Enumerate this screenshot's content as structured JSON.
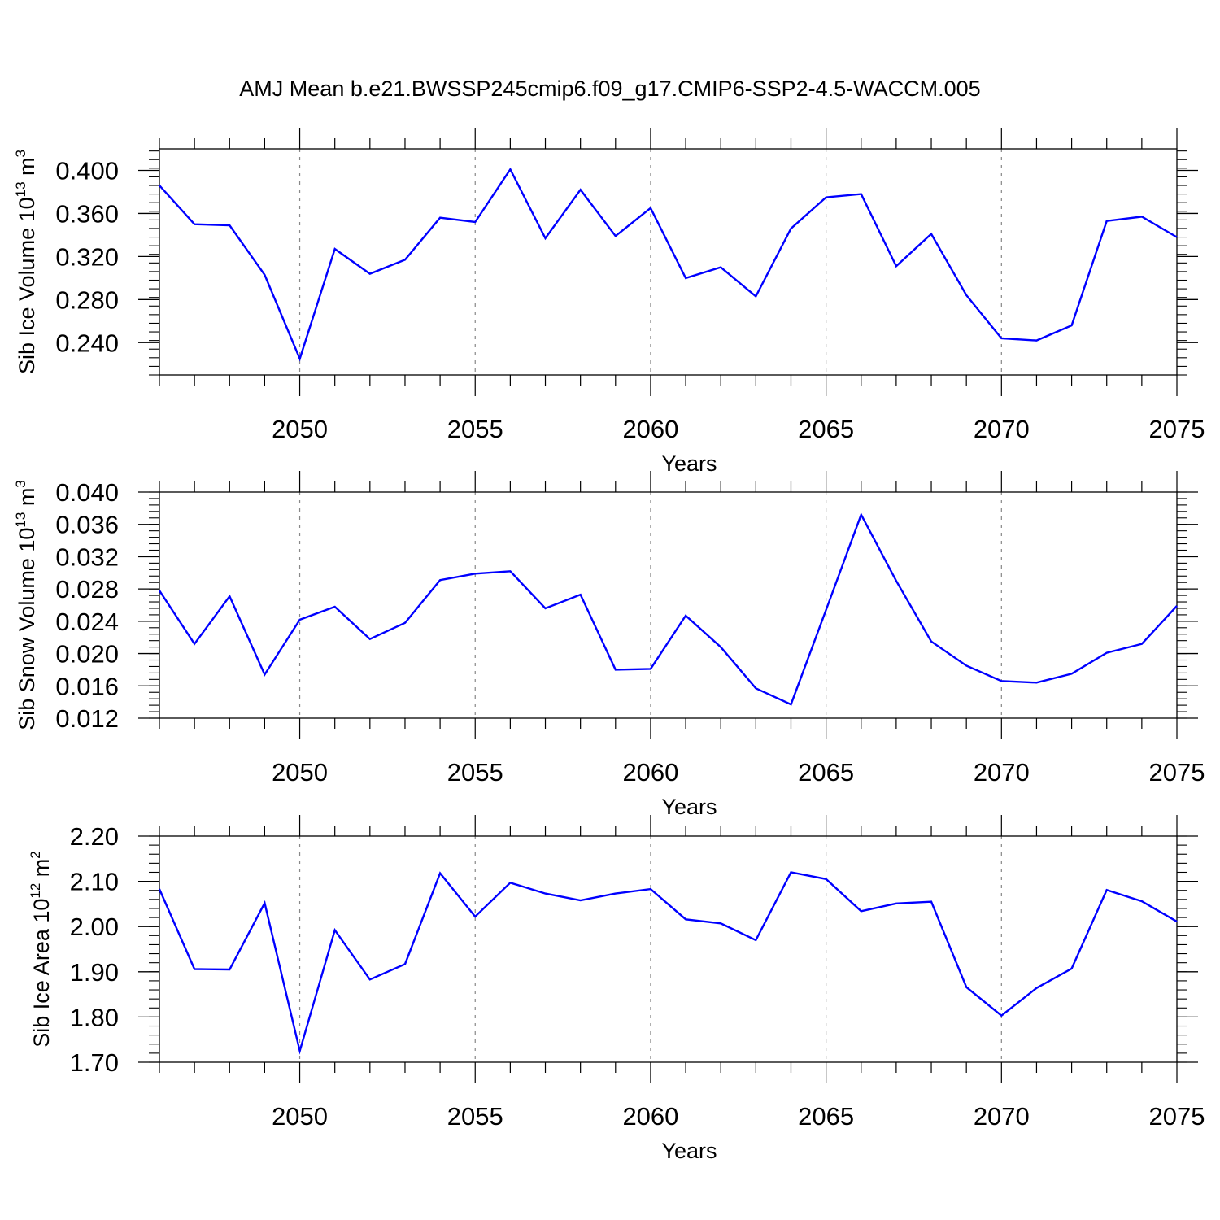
{
  "title": "AMJ Mean b.e21.BWSSP245cmip6.f09_g17.CMIP6-SSP2-4.5-WACCM.005",
  "line_color": "#0000ff",
  "chart_data": [
    {
      "type": "line",
      "ylabel": "Sib Ice Volume 10",
      "ylabel_exp": "13",
      "ylabel_unit": " m",
      "ylabel_unit_exp": "3",
      "xlabel": "Years",
      "xlim": [
        2046,
        2075
      ],
      "ylim": [
        0.21,
        0.42
      ],
      "yticks": [
        0.24,
        0.28,
        0.32,
        0.36,
        0.4
      ],
      "ytick_labels": [
        "0.240",
        "0.280",
        "0.320",
        "0.360",
        "0.400"
      ],
      "xticks": [
        2050,
        2055,
        2060,
        2065,
        2070,
        2075
      ],
      "xtick_labels": [
        "2050",
        "2055",
        "2060",
        "2065",
        "2070",
        "2075"
      ],
      "x": [
        2046,
        2047,
        2048,
        2049,
        2050,
        2051,
        2052,
        2053,
        2054,
        2055,
        2056,
        2057,
        2058,
        2059,
        2060,
        2061,
        2062,
        2063,
        2064,
        2065,
        2066,
        2067,
        2068,
        2069,
        2070,
        2071,
        2072,
        2073,
        2074,
        2075
      ],
      "values": [
        0.386,
        0.35,
        0.349,
        0.303,
        0.225,
        0.327,
        0.304,
        0.317,
        0.356,
        0.352,
        0.401,
        0.337,
        0.382,
        0.339,
        0.365,
        0.3,
        0.31,
        0.283,
        0.346,
        0.375,
        0.378,
        0.311,
        0.341,
        0.284,
        0.244,
        0.242,
        0.256,
        0.353,
        0.357,
        0.338
      ]
    },
    {
      "type": "line",
      "ylabel": "Sib Snow Volume 10",
      "ylabel_exp": "13",
      "ylabel_unit": " m",
      "ylabel_unit_exp": "3",
      "xlabel": "Years",
      "xlim": [
        2046,
        2075
      ],
      "ylim": [
        0.012,
        0.04
      ],
      "yticks": [
        0.012,
        0.016,
        0.02,
        0.024,
        0.028,
        0.032,
        0.036,
        0.04
      ],
      "ytick_labels": [
        "0.012",
        "0.016",
        "0.020",
        "0.024",
        "0.028",
        "0.032",
        "0.036",
        "0.040"
      ],
      "xticks": [
        2050,
        2055,
        2060,
        2065,
        2070,
        2075
      ],
      "xtick_labels": [
        "2050",
        "2055",
        "2060",
        "2065",
        "2070",
        "2075"
      ],
      "x": [
        2046,
        2047,
        2048,
        2049,
        2050,
        2051,
        2052,
        2053,
        2054,
        2055,
        2056,
        2057,
        2058,
        2059,
        2060,
        2061,
        2062,
        2063,
        2064,
        2065,
        2066,
        2067,
        2068,
        2069,
        2070,
        2071,
        2072,
        2073,
        2074,
        2075
      ],
      "values": [
        0.0278,
        0.0212,
        0.0271,
        0.0174,
        0.0242,
        0.0258,
        0.0218,
        0.0238,
        0.0291,
        0.0299,
        0.0302,
        0.0256,
        0.0273,
        0.018,
        0.0181,
        0.0247,
        0.0208,
        0.0157,
        0.0137,
        0.0254,
        0.0372,
        0.029,
        0.0215,
        0.0185,
        0.0166,
        0.0164,
        0.0175,
        0.0201,
        0.0212,
        0.0259
      ]
    },
    {
      "type": "line",
      "ylabel": "Sib Ice Area 10",
      "ylabel_exp": "12",
      "ylabel_unit": " m",
      "ylabel_unit_exp": "2",
      "xlabel": "Years",
      "xlim": [
        2046,
        2075
      ],
      "ylim": [
        1.7,
        2.2
      ],
      "yticks": [
        1.7,
        1.8,
        1.9,
        2.0,
        2.1,
        2.2
      ],
      "ytick_labels": [
        "1.70",
        "1.80",
        "1.90",
        "2.00",
        "2.10",
        "2.20"
      ],
      "xticks": [
        2050,
        2055,
        2060,
        2065,
        2070,
        2075
      ],
      "xtick_labels": [
        "2050",
        "2055",
        "2060",
        "2065",
        "2070",
        "2075"
      ],
      "x": [
        2046,
        2047,
        2048,
        2049,
        2050,
        2051,
        2052,
        2053,
        2054,
        2055,
        2056,
        2057,
        2058,
        2059,
        2060,
        2061,
        2062,
        2063,
        2064,
        2065,
        2066,
        2067,
        2068,
        2069,
        2070,
        2071,
        2072,
        2073,
        2074,
        2075
      ],
      "values": [
        2.083,
        1.906,
        1.905,
        2.052,
        1.725,
        1.992,
        1.883,
        1.917,
        2.118,
        2.022,
        2.097,
        2.073,
        2.058,
        2.073,
        2.083,
        2.016,
        2.007,
        1.97,
        2.12,
        2.105,
        2.034,
        2.051,
        2.055,
        1.866,
        1.803,
        1.864,
        1.907,
        2.081,
        2.056,
        2.011
      ]
    }
  ]
}
